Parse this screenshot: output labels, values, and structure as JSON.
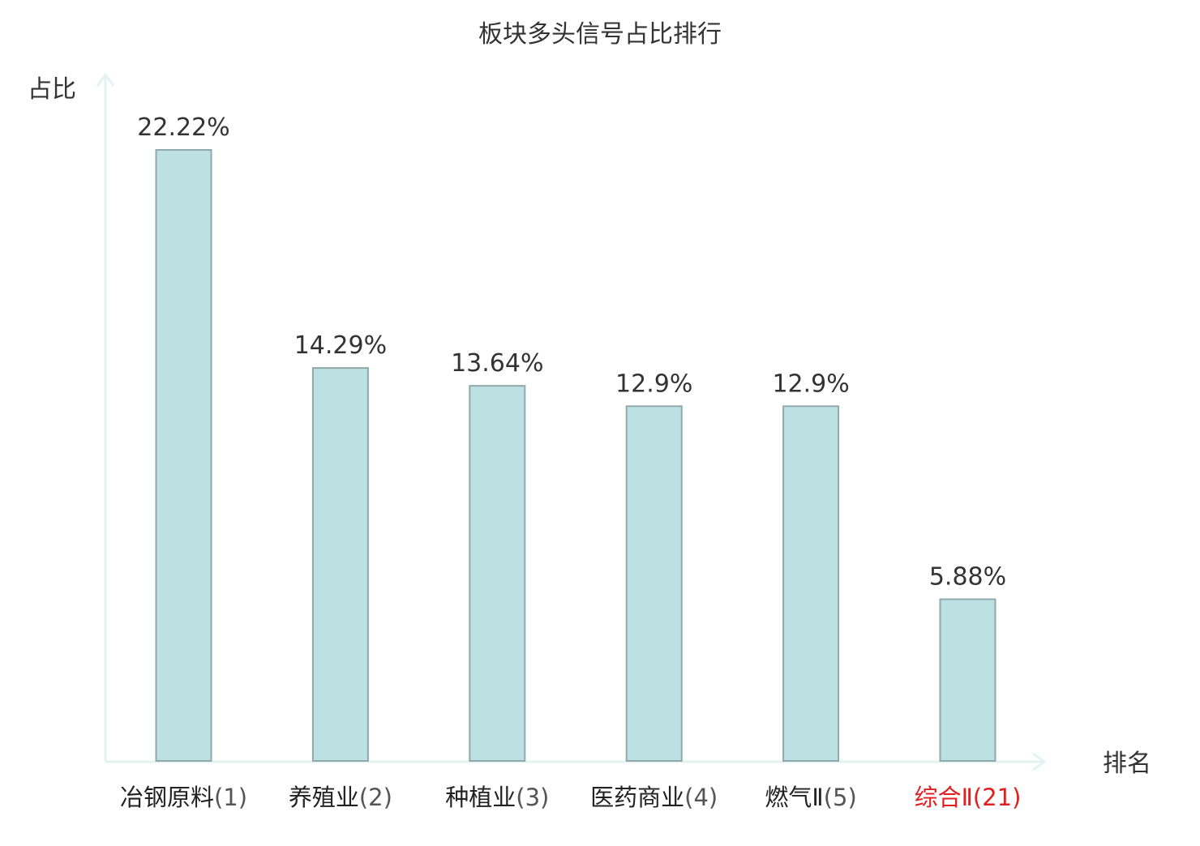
{
  "chart_data": {
    "type": "bar",
    "title": "板块多头信号占比排行",
    "ylabel": "占比",
    "xlabel": "排名",
    "categories": [
      {
        "name": "冶钢原料",
        "rank": "(1)"
      },
      {
        "name": "养殖业",
        "rank": "(2)"
      },
      {
        "name": "种植业",
        "rank": "(3)"
      },
      {
        "name": "医药商业",
        "rank": "(4)"
      },
      {
        "name": "燃气Ⅱ",
        "rank": "(5)"
      },
      {
        "name": "综合Ⅱ",
        "rank": "(21)"
      }
    ],
    "values": [
      22.22,
      14.29,
      13.64,
      12.9,
      12.9,
      5.88
    ],
    "value_labels": [
      "22.22%",
      "14.29%",
      "13.64%",
      "12.9%",
      "12.9%",
      "5.88%"
    ],
    "highlight_category": "综合Ⅱ",
    "grid": false,
    "colors": {
      "bar_fill": "#bde0e3",
      "bar_stroke": "#8fa9ac",
      "axis": "#e3f3f1",
      "text": "#333333",
      "highlight": "#e02020"
    }
  }
}
